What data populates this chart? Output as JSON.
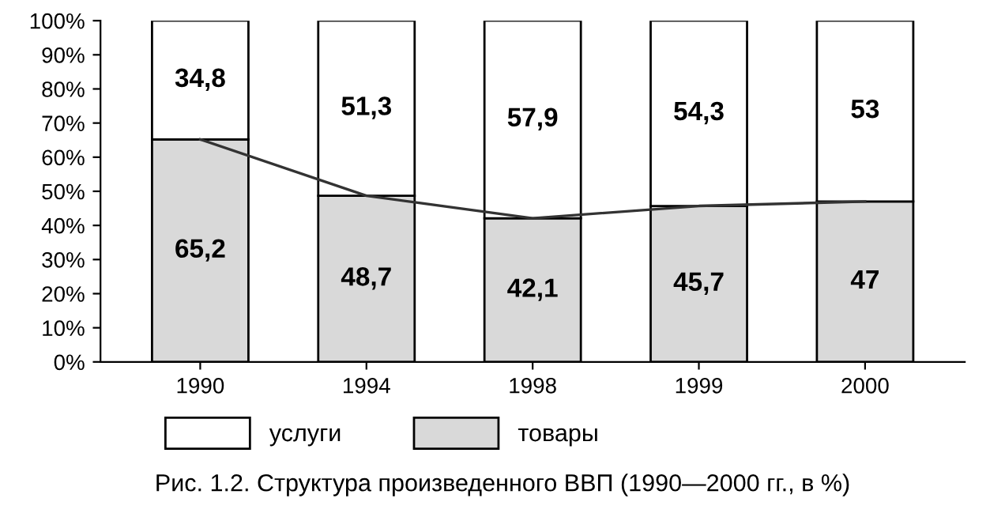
{
  "chart_data": {
    "type": "bar",
    "stacked": true,
    "categories": [
      "1990",
      "1994",
      "1998",
      "1999",
      "2000"
    ],
    "series": [
      {
        "name": "товары",
        "color": "#d9d9d9",
        "values": [
          65.2,
          48.7,
          42.1,
          45.7,
          47
        ],
        "value_labels": [
          "65,2",
          "48,7",
          "42,1",
          "45,7",
          "47"
        ]
      },
      {
        "name": "услуги",
        "color": "#ffffff",
        "values": [
          34.8,
          51.3,
          57.9,
          54.3,
          53
        ],
        "value_labels": [
          "34,8",
          "51,3",
          "57,9",
          "54,3",
          "53"
        ]
      },
      {
        "type": "line",
        "color": "#333333",
        "values": [
          65.2,
          48.7,
          42.1,
          45.7,
          47
        ]
      }
    ],
    "ylim": [
      0,
      100
    ],
    "yticks": [
      {
        "value": 0,
        "label": "0%"
      },
      {
        "value": 10,
        "label": "10%"
      },
      {
        "value": 20,
        "label": "20%"
      },
      {
        "value": 30,
        "label": "30%"
      },
      {
        "value": 40,
        "label": "40%"
      },
      {
        "value": 50,
        "label": "50%"
      },
      {
        "value": 60,
        "label": "60%"
      },
      {
        "value": 70,
        "label": "70%"
      },
      {
        "value": 80,
        "label": "80%"
      },
      {
        "value": 90,
        "label": "90%"
      },
      {
        "value": 100,
        "label": "100%"
      }
    ],
    "grid": false,
    "legend": "bottom left",
    "marker": "none",
    "annotations": [
      "Рис. 1.2. Структура произведенного ВВП (1990—2000 гг., в %)"
    ]
  }
}
